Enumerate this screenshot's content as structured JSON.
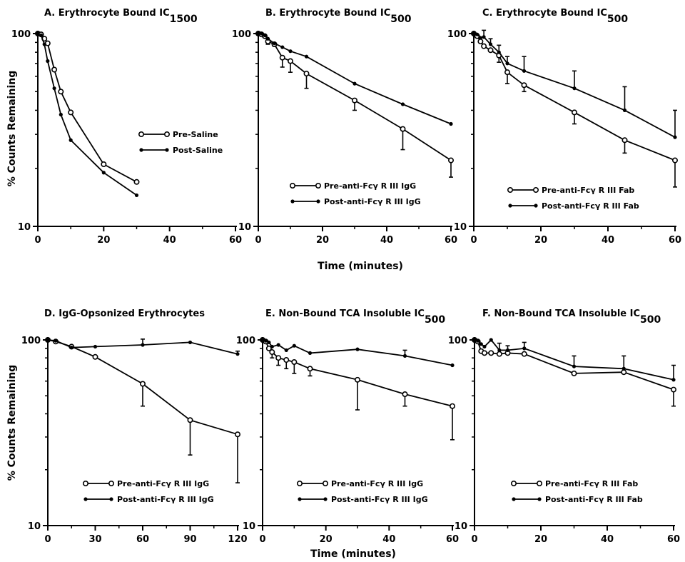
{
  "figure": {
    "xlabel_top": "Time (minutes)",
    "xlabel_bottom": "Time (minutes)",
    "ylabel_top": "% Counts Remaining",
    "ylabel_bottom": "% Counts Remaining"
  },
  "chart_data": [
    {
      "panel": "A",
      "type": "line",
      "title": "A.  Erythrocyte Bound IC",
      "title_sub": "1500",
      "xlim": [
        0,
        60
      ],
      "xticks": [
        0,
        20,
        40,
        60
      ],
      "yscale": "log",
      "ylim": [
        10,
        100
      ],
      "yticks": [
        10,
        100
      ],
      "legend_position": "right-middle",
      "series": [
        {
          "name": "Pre-Saline",
          "marker": "open",
          "x": [
            0,
            1,
            2,
            3,
            5,
            7,
            10,
            20,
            30
          ],
          "y": [
            100,
            99,
            94,
            89,
            65,
            50,
            39,
            21,
            17
          ],
          "err": [
            0,
            0,
            0,
            0,
            0,
            0,
            0,
            0,
            0
          ]
        },
        {
          "name": "Post-Saline",
          "marker": "filled",
          "x": [
            0,
            1,
            2,
            3,
            5,
            7,
            10,
            20,
            30
          ],
          "y": [
            100,
            98,
            88,
            72,
            52,
            38,
            28,
            19,
            14.5
          ],
          "err": [
            0,
            0,
            0,
            0,
            0,
            0,
            0,
            0,
            0
          ]
        }
      ]
    },
    {
      "panel": "B",
      "type": "line",
      "title": "B.  Erythrocyte Bound IC",
      "title_sub": "500",
      "xlim": [
        0,
        60
      ],
      "xticks": [
        0,
        20,
        40,
        60
      ],
      "yscale": "log",
      "ylim": [
        10,
        100
      ],
      "yticks": [
        10,
        100
      ],
      "legend_position": "bottom-right",
      "series": [
        {
          "name": "Pre-anti-Fcγ R III IgG",
          "marker": "open",
          "x": [
            0,
            1,
            2,
            3,
            5,
            7.5,
            10,
            15,
            30,
            45,
            60
          ],
          "y": [
            100,
            99,
            97,
            91,
            88,
            75,
            72,
            62,
            45,
            32,
            22
          ],
          "err": [
            0,
            0,
            0,
            3,
            2,
            8,
            9,
            10,
            5,
            7,
            4
          ]
        },
        {
          "name": "Post-anti-Fcγ R III IgG",
          "marker": "filled",
          "x": [
            0,
            1,
            2,
            3,
            5,
            7.5,
            10,
            15,
            30,
            45,
            60
          ],
          "y": [
            100,
            100,
            98,
            94,
            89,
            85,
            81,
            76,
            55,
            43,
            34
          ],
          "err": [
            0,
            0,
            0,
            0,
            0,
            0,
            0,
            0,
            0,
            0,
            0
          ]
        }
      ]
    },
    {
      "panel": "C",
      "type": "line",
      "title": "C.  Erythrocyte Bound IC",
      "title_sub": "500",
      "xlim": [
        0,
        60
      ],
      "xticks": [
        0,
        20,
        40,
        60
      ],
      "yscale": "log",
      "ylim": [
        10,
        100
      ],
      "yticks": [
        10,
        100
      ],
      "legend_position": "bottom-right",
      "series": [
        {
          "name": "Pre-anti-Fcγ R III Fab",
          "marker": "open",
          "x": [
            0,
            1,
            2,
            3,
            5,
            7.5,
            10,
            15,
            30,
            45,
            60
          ],
          "y": [
            100,
            97,
            91,
            86,
            82,
            77,
            63,
            54,
            39,
            28,
            22
          ],
          "err": [
            0,
            0,
            0,
            0,
            0,
            6,
            8,
            4,
            5,
            4,
            6
          ]
        },
        {
          "name": "Post-anti-Fcγ R III Fab",
          "marker": "filled",
          "x": [
            0,
            1,
            2,
            3,
            5,
            7.5,
            10,
            15,
            30,
            45,
            60
          ],
          "y": [
            100,
            99,
            95,
            96,
            88,
            80,
            70,
            64,
            52,
            40,
            29
          ],
          "err": [
            0,
            0,
            0,
            8,
            6,
            7,
            6,
            12,
            12,
            13,
            11
          ]
        }
      ]
    },
    {
      "panel": "D",
      "type": "line",
      "title": "D.  IgG-Opsonized Erythrocytes",
      "title_sub": "",
      "xlim": [
        0,
        120
      ],
      "xticks": [
        0,
        30,
        60,
        90,
        120
      ],
      "yscale": "log",
      "ylim": [
        10,
        100
      ],
      "yticks": [
        10,
        100
      ],
      "legend_position": "bottom-right",
      "series": [
        {
          "name": "Pre-anti-Fcγ R III IgG",
          "marker": "open",
          "x": [
            0,
            5,
            15,
            30,
            60,
            90,
            120
          ],
          "y": [
            100,
            98,
            92,
            81,
            58,
            37,
            31
          ],
          "err": [
            0,
            0,
            0,
            0,
            14,
            13,
            14
          ]
        },
        {
          "name": "Post-anti-Fcγ R III IgG",
          "marker": "filled",
          "x": [
            0,
            5,
            15,
            30,
            60,
            90,
            120
          ],
          "y": [
            100,
            99,
            91,
            92,
            94,
            97,
            84
          ],
          "err": [
            0,
            0,
            0,
            0,
            7,
            0,
            3
          ]
        }
      ]
    },
    {
      "panel": "E",
      "type": "line",
      "title": "E.  Non-Bound TCA Insoluble IC",
      "title_sub": "500",
      "xlim": [
        0,
        60
      ],
      "xticks": [
        0,
        20,
        40,
        60
      ],
      "yscale": "log",
      "ylim": [
        10,
        100
      ],
      "yticks": [
        10,
        100
      ],
      "legend_position": "bottom-right",
      "series": [
        {
          "name": "Pre-anti-Fcγ R III IgG",
          "marker": "open",
          "x": [
            0,
            1,
            2,
            3,
            5,
            7.5,
            10,
            15,
            30,
            45,
            60
          ],
          "y": [
            100,
            98,
            90,
            86,
            80,
            78,
            76,
            70,
            61,
            51,
            44
          ],
          "err": [
            0,
            0,
            0,
            6,
            7,
            8,
            10,
            6,
            19,
            7,
            15
          ]
        },
        {
          "name": "Post-anti-Fcγ R III IgG",
          "marker": "filled",
          "x": [
            0,
            1,
            2,
            3,
            5,
            7.5,
            10,
            15,
            30,
            45,
            60
          ],
          "y": [
            100,
            99,
            97,
            92,
            94,
            88,
            93,
            85,
            89,
            82,
            73
          ],
          "err": [
            0,
            0,
            0,
            0,
            0,
            0,
            0,
            0,
            0,
            6,
            0
          ]
        }
      ]
    },
    {
      "panel": "F",
      "type": "line",
      "title": "F.  Non-Bound TCA Insoluble IC",
      "title_sub": "500",
      "xlim": [
        0,
        60
      ],
      "xticks": [
        0,
        20,
        40,
        60
      ],
      "yscale": "log",
      "ylim": [
        10,
        100
      ],
      "yticks": [
        10,
        100
      ],
      "legend_position": "bottom-right",
      "series": [
        {
          "name": "Pre-anti-Fcγ R III Fab",
          "marker": "open",
          "x": [
            0,
            1,
            2,
            3,
            5,
            7.5,
            10,
            15,
            30,
            45,
            60
          ],
          "y": [
            100,
            98,
            87,
            85,
            85,
            84,
            85,
            84,
            66,
            67,
            54
          ],
          "err": [
            0,
            0,
            0,
            0,
            0,
            0,
            0,
            0,
            0,
            0,
            10
          ]
        },
        {
          "name": "Post-anti-Fcγ R III Fab",
          "marker": "filled",
          "x": [
            0,
            1,
            2,
            3,
            5,
            7.5,
            10,
            15,
            30,
            45,
            60
          ],
          "y": [
            100,
            99,
            95,
            92,
            100,
            88,
            88,
            90,
            72,
            70,
            61
          ],
          "err": [
            0,
            0,
            0,
            0,
            0,
            8,
            5,
            7,
            10,
            12,
            12
          ]
        }
      ]
    }
  ]
}
